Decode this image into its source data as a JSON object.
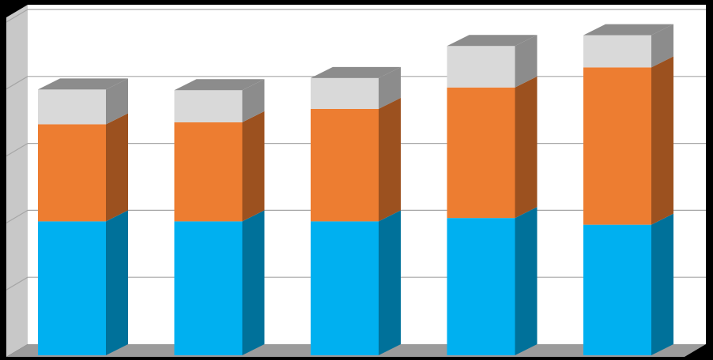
{
  "chart_data": {
    "type": "bar",
    "stacked": true,
    "three_d": true,
    "categories": [
      "",
      "",
      "",
      "",
      ""
    ],
    "series": [
      {
        "values": [
          2.0,
          2.0,
          2.0,
          2.05,
          1.95
        ],
        "color": "#00B0F0",
        "side_color": "#00719A"
      },
      {
        "values": [
          1.45,
          1.48,
          1.68,
          1.95,
          2.35
        ],
        "color": "#ED7D31",
        "side_color": "#9C511F"
      },
      {
        "values": [
          0.52,
          0.48,
          0.46,
          0.62,
          0.48
        ],
        "color": "#D9D9D9",
        "side_color": "#8C8C8C"
      }
    ],
    "ylim": [
      0,
      5
    ],
    "y_gridlines": [
      1,
      2,
      3,
      4,
      5
    ],
    "grid": true,
    "legend": "none",
    "title": "",
    "xlabel": "",
    "ylabel": ""
  },
  "style": {
    "background": "#000000",
    "plot_background": "#FFFFFF",
    "wall_side": "#C8C8C8",
    "floor": "#9B9B9B",
    "gridline": "#A6A6A6"
  }
}
